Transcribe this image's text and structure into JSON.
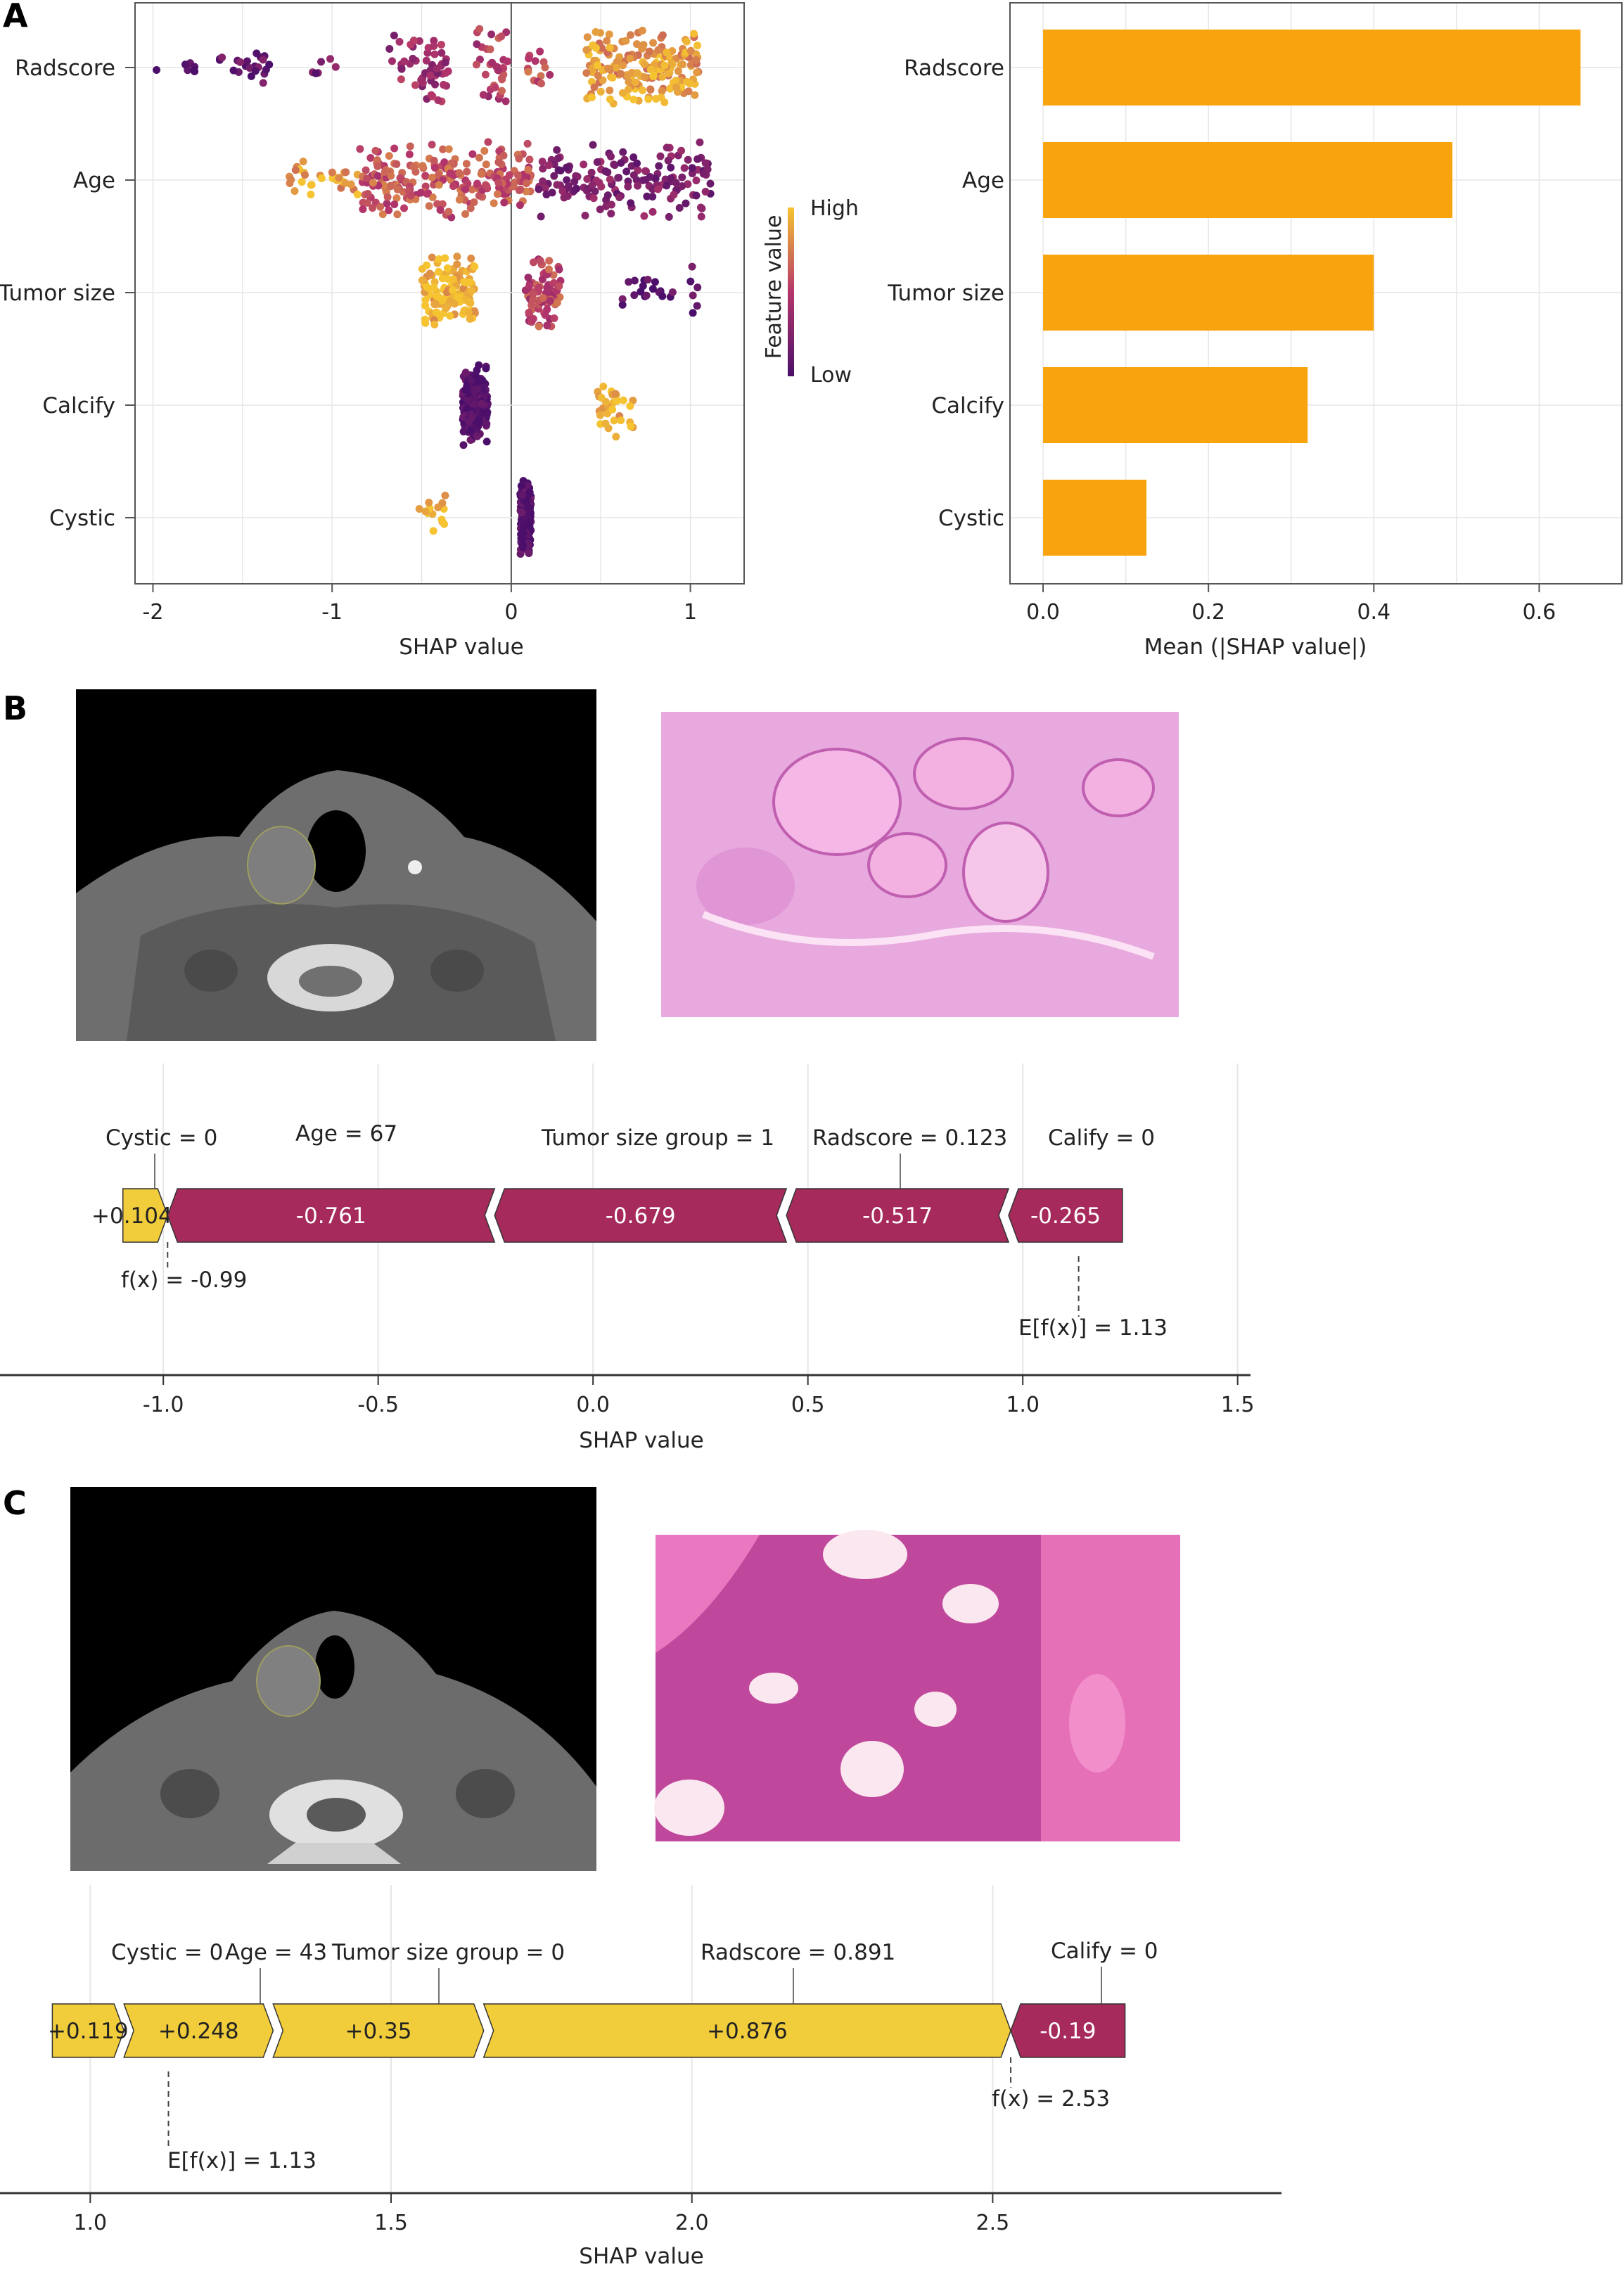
{
  "panels": {
    "a_label": "A",
    "b_label": "B",
    "c_label": "C"
  },
  "colors": {
    "low": "#4b0f6b",
    "mid": "#b5366b",
    "high": "#f6c431",
    "orange_bar": "#f9a40e",
    "push_down": "#a62a5c",
    "push_up": "#f2cd3b",
    "grid": "#e6e6e6",
    "ct_background": "#000000",
    "histo_pink": "#e08ad3",
    "histo_c": "#c0489c"
  },
  "chart_data": [
    {
      "id": "beeswarm",
      "type": "scatter",
      "subtype": "shap-beeswarm",
      "categories": [
        "Radscore",
        "Age",
        "Tumor size",
        "Calcify",
        "Cystic"
      ],
      "xlabel": "SHAP value",
      "xlim": [
        -2.1,
        1.3
      ],
      "xticks": [
        -2,
        -1,
        0,
        1
      ],
      "xtick_labels": [
        "-2",
        "-1",
        "0",
        "1"
      ],
      "legend": {
        "title": "Feature value",
        "high": "High",
        "low": "Low",
        "placement": "right"
      },
      "groups": [
        {
          "category": "Radscore",
          "clusters": [
            {
              "x": [
                -1.98,
                -1.75
              ],
              "n": 8,
              "value": 0.05
            },
            {
              "x": [
                -1.65,
                -1.35
              ],
              "n": 22,
              "value": 0.12
            },
            {
              "x": [
                -1.12,
                -0.9
              ],
              "n": 6,
              "value": 0.2
            },
            {
              "x": [
                -0.68,
                -0.35
              ],
              "n": 55,
              "value": 0.38
            },
            {
              "x": [
                -0.2,
                -0.02
              ],
              "n": 35,
              "value": 0.5
            },
            {
              "x": [
                0.08,
                0.22
              ],
              "n": 14,
              "value": 0.6
            },
            {
              "x": [
                0.42,
                1.05
              ],
              "n": 190,
              "value": 0.85
            }
          ]
        },
        {
          "category": "Age",
          "clusters": [
            {
              "x": [
                -1.25,
                -0.85
              ],
              "n": 30,
              "value": 0.88
            },
            {
              "x": [
                -0.85,
                0.12
              ],
              "n": 230,
              "value": 0.6
            },
            {
              "x": [
                0.15,
                1.12
              ],
              "n": 160,
              "value": 0.25
            }
          ]
        },
        {
          "category": "Tumor size",
          "clusters": [
            {
              "x": [
                -0.5,
                -0.2
              ],
              "n": 130,
              "value": 0.95
            },
            {
              "x": [
                0.08,
                0.28
              ],
              "n": 80,
              "value": 0.55
            },
            {
              "x": [
                0.62,
                0.92
              ],
              "n": 18,
              "value": 0.05
            },
            {
              "x": [
                1.0,
                1.04
              ],
              "n": 6,
              "value": 0.05
            }
          ]
        },
        {
          "category": "Calcify",
          "clusters": [
            {
              "x": [
                -0.27,
                -0.13
              ],
              "n": 220,
              "value": 0.02
            },
            {
              "x": [
                0.48,
                0.68
              ],
              "n": 30,
              "value": 0.95
            }
          ]
        },
        {
          "category": "Cystic",
          "clusters": [
            {
              "x": [
                -0.52,
                -0.36
              ],
              "n": 14,
              "value": 0.95
            },
            {
              "x": [
                0.05,
                0.11
              ],
              "n": 160,
              "value": 0.02
            }
          ]
        }
      ]
    },
    {
      "id": "importance",
      "type": "bar",
      "orientation": "horizontal",
      "categories": [
        "Radscore",
        "Age",
        "Tumor size",
        "Calcify",
        "Cystic"
      ],
      "values": [
        0.65,
        0.495,
        0.4,
        0.32,
        0.125
      ],
      "xlabel": "Mean (|SHAP value|)",
      "xlim": [
        -0.04,
        0.7
      ],
      "xticks": [
        0.0,
        0.2,
        0.4,
        0.6
      ],
      "xtick_labels": [
        "0.0",
        "0.2",
        "0.4",
        "0.6"
      ]
    },
    {
      "id": "force-b",
      "type": "bar",
      "subtype": "shap-force",
      "xlabel": "SHAP value",
      "xlim": [
        -1.38,
        1.53
      ],
      "xticks": [
        -1.0,
        -0.5,
        0.0,
        0.5,
        1.0,
        1.5
      ],
      "xtick_labels": [
        "-1.0",
        "-0.5",
        "0.0",
        "0.5",
        "1.0",
        "1.5"
      ],
      "fx": -0.99,
      "fx_label": "f(x) = -0.99",
      "base": 1.13,
      "base_label": "E[f(x)] = 1.13",
      "segments": [
        {
          "feature": "Cystic = 0",
          "start": -1.094,
          "end": -0.99,
          "direction": "up",
          "label": "+0.104"
        },
        {
          "feature": "Age = 67",
          "start": -0.99,
          "end": -0.229,
          "direction": "down",
          "label": "-0.761"
        },
        {
          "feature": "Tumor size group = 1",
          "start": -0.229,
          "end": 0.45,
          "direction": "down",
          "label": "-0.679"
        },
        {
          "feature": "Radscore = 0.123",
          "start": 0.45,
          "end": 0.967,
          "direction": "down",
          "label": "-0.517"
        },
        {
          "feature": "Calify = 0",
          "start": 0.967,
          "end": 1.232,
          "direction": "down",
          "label": "-0.265"
        }
      ]
    },
    {
      "id": "force-c",
      "type": "bar",
      "subtype": "shap-force",
      "xlabel": "SHAP value",
      "xlim": [
        0.85,
        2.98
      ],
      "xticks": [
        1.0,
        1.5,
        2.0,
        2.5
      ],
      "xtick_labels": [
        "1.0",
        "1.5",
        "2.0",
        "2.5"
      ],
      "fx": 2.53,
      "fx_label": "f(x) = 2.53",
      "base": 1.13,
      "base_label": "E[f(x)] = 1.13",
      "segments": [
        {
          "feature": "Cystic = 0",
          "start": 0.937,
          "end": 1.056,
          "direction": "up",
          "label": "+0.119"
        },
        {
          "feature": "Age = 43",
          "start": 1.056,
          "end": 1.304,
          "direction": "up",
          "label": "+0.248"
        },
        {
          "feature": "Tumor size group = 0",
          "start": 1.304,
          "end": 1.654,
          "direction": "up",
          "label": "+0.35"
        },
        {
          "feature": "Radscore = 0.891",
          "start": 1.654,
          "end": 2.53,
          "direction": "up",
          "label": "+0.876"
        },
        {
          "feature": "Califу = 0",
          "start": 2.53,
          "end": 2.72,
          "direction": "down",
          "label": "-0.19"
        }
      ]
    }
  ]
}
